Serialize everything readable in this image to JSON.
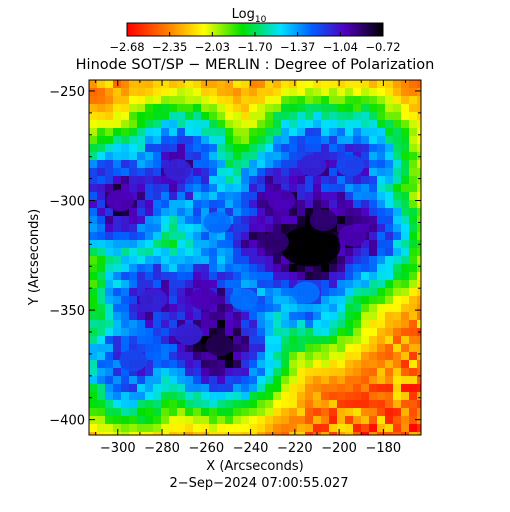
{
  "chart_data": {
    "type": "heatmap",
    "title": "Hinode SOT/SP − MERLIN : Degree of Polarization",
    "colorbar": {
      "label_main": "Log",
      "label_sub": "10",
      "ticks": [
        "−2.68",
        "−2.35",
        "−2.03",
        "−1.70",
        "−1.37",
        "−1.04",
        "−0.72"
      ],
      "range": [
        -2.68,
        -0.72
      ],
      "colormap": "rainbow (red → yellow → green → cyan → blue → violet → black)"
    },
    "xlabel": "X (Arcseconds)",
    "ylabel": "Y (Arcseconds)",
    "xlim": [
      -313,
      -163
    ],
    "ylim": [
      -407,
      -245
    ],
    "xticks": [
      -300,
      -280,
      -260,
      -240,
      -220,
      -200,
      -180
    ],
    "yticks": [
      -250,
      -300,
      -350,
      -400
    ],
    "x_tick_labels": [
      "−300",
      "−280",
      "−260",
      "−240",
      "−220",
      "−200",
      "−180"
    ],
    "y_tick_labels": [
      "−250",
      "−300",
      "−350",
      "−400"
    ],
    "features": [
      {
        "kind": "pore",
        "x": -213,
        "y": -321,
        "value": -0.72
      },
      {
        "kind": "pore",
        "x": -229,
        "y": -319,
        "value": -0.9
      },
      {
        "kind": "pore",
        "x": -207,
        "y": -309,
        "value": -0.9
      },
      {
        "kind": "pore",
        "x": -226,
        "y": -300,
        "value": -1.0
      },
      {
        "kind": "pore",
        "x": -194,
        "y": -316,
        "value": -1.0
      },
      {
        "kind": "pore",
        "x": -254,
        "y": -366,
        "value": -0.85
      },
      {
        "kind": "pore",
        "x": -268,
        "y": -361,
        "value": -1.1
      },
      {
        "kind": "pore",
        "x": -261,
        "y": -345,
        "value": -1.0
      },
      {
        "kind": "pore",
        "x": -299,
        "y": -300,
        "value": -1.0
      },
      {
        "kind": "pore",
        "x": -284,
        "y": -345,
        "value": -1.1
      },
      {
        "kind": "pore",
        "x": -273,
        "y": -286,
        "value": -1.1
      },
      {
        "kind": "pore",
        "x": -212,
        "y": -284,
        "value": -1.1
      },
      {
        "kind": "pore",
        "x": -195,
        "y": -284,
        "value": -1.2
      },
      {
        "kind": "pore",
        "x": -293,
        "y": -373,
        "value": -1.2
      },
      {
        "kind": "pore",
        "x": -243,
        "y": -345,
        "value": -1.3
      },
      {
        "kind": "pore",
        "x": -215,
        "y": -342,
        "value": -1.3
      },
      {
        "kind": "pore",
        "x": -255,
        "y": -310,
        "value": -1.3
      }
    ],
    "background_value": -2.68,
    "grid": false,
    "timestamp": "2−Sep−2024 07:00:55.027"
  }
}
